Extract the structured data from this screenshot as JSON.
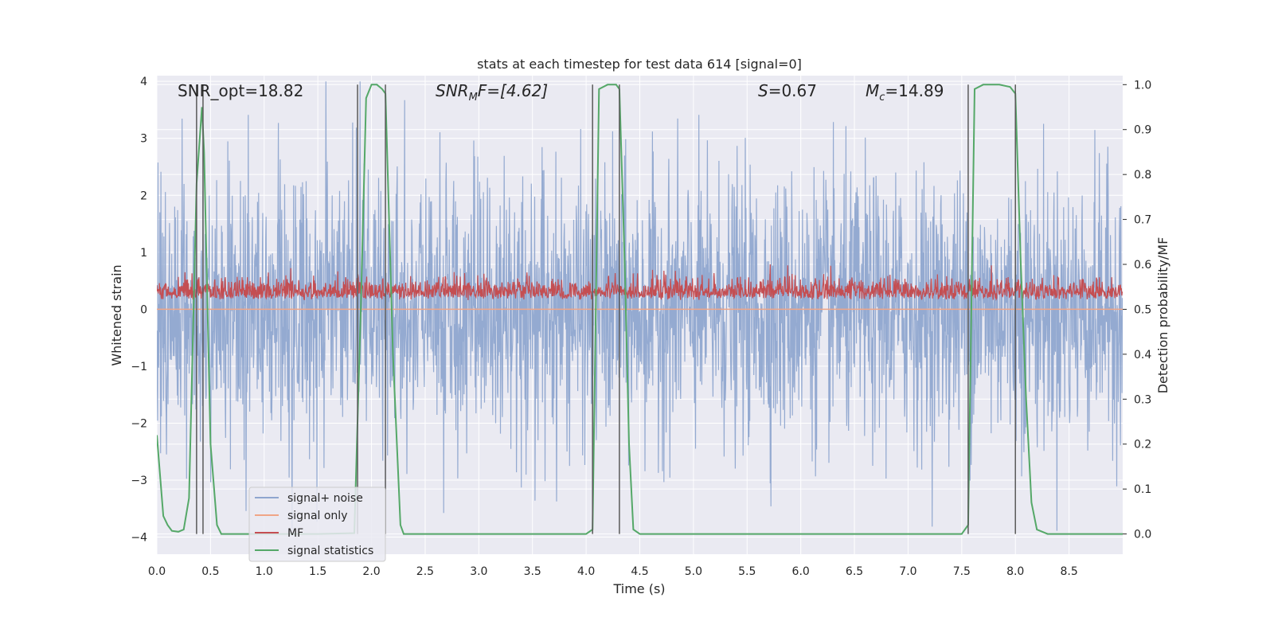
{
  "chart_data": {
    "type": "line",
    "title": "stats at each timestep for test data 614 [signal=0]",
    "xlabel": "Time (s)",
    "ylabel_left": "Whitened strain",
    "ylabel_right": "Detection probability/MF",
    "xlim": [
      0.0,
      9.0
    ],
    "ylim_left": [
      -4.3,
      4.1
    ],
    "ylim_right": [
      -0.045,
      1.02
    ],
    "xticks": [
      "0.0",
      "0.5",
      "1.0",
      "1.5",
      "2.0",
      "2.5",
      "3.0",
      "3.5",
      "4.0",
      "4.5",
      "5.0",
      "5.5",
      "6.0",
      "6.5",
      "7.0",
      "7.5",
      "8.0",
      "8.5"
    ],
    "yticks_left": [
      "4",
      "3",
      "2",
      "1",
      "0",
      "−1",
      "−2",
      "−3",
      "−4"
    ],
    "yticks_right": [
      "1.0",
      "0.9",
      "0.8",
      "0.7",
      "0.6",
      "0.5",
      "0.4",
      "0.3",
      "0.2",
      "0.1",
      "0.0"
    ],
    "grid": true,
    "legend_position": "lower-left",
    "annotations": [
      {
        "text": "SNR_opt=18.82"
      },
      {
        "text": "SNRₘF=[4.62]",
        "parts": [
          "SNR",
          "M",
          "F=[4.62]"
        ]
      },
      {
        "text": "S=0.67",
        "parts": [
          "S",
          "=0.67"
        ]
      },
      {
        "text": "Mc=14.89",
        "parts": [
          "M",
          "c",
          "=14.89"
        ]
      }
    ],
    "series": [
      {
        "name": "signal+ noise",
        "color": "#8fa6cf",
        "axis": "left",
        "kind": "noise",
        "range": [
          -4.0,
          4.0
        ]
      },
      {
        "name": "signal only",
        "color": "#f0a586",
        "axis": "left",
        "kind": "flat",
        "values": 0
      },
      {
        "name": "MF",
        "color": "#c44e52",
        "axis": "right",
        "kind": "noise",
        "range": [
          0.5,
          0.6
        ]
      },
      {
        "name": "signal statistics",
        "color": "#55a868",
        "axis": "right",
        "x": [
          0.0,
          0.06,
          0.1,
          0.14,
          0.2,
          0.25,
          0.3,
          0.37,
          0.42,
          0.44,
          0.5,
          0.56,
          0.6,
          1.0,
          1.5,
          1.84,
          1.9,
          1.95,
          2.0,
          2.05,
          2.1,
          2.13,
          2.2,
          2.27,
          2.3,
          2.4,
          3.0,
          3.5,
          4.0,
          4.06,
          4.12,
          4.2,
          4.28,
          4.31,
          4.36,
          4.4,
          4.44,
          4.5,
          5.0,
          5.5,
          6.0,
          6.5,
          7.0,
          7.5,
          7.56,
          7.62,
          7.7,
          7.85,
          7.95,
          8.0,
          8.05,
          8.1,
          8.15,
          8.2,
          8.3,
          8.5,
          8.7,
          9.0
        ],
        "y": [
          0.22,
          0.04,
          0.02,
          0.007,
          0.005,
          0.01,
          0.08,
          0.78,
          0.95,
          0.85,
          0.2,
          0.02,
          0.0,
          0.0,
          0.0,
          0.002,
          0.5,
          0.97,
          1.0,
          1.0,
          0.99,
          0.98,
          0.4,
          0.02,
          0.0,
          0.0,
          0.0,
          0.0,
          0.0,
          0.01,
          0.99,
          1.0,
          1.0,
          0.99,
          0.6,
          0.2,
          0.01,
          0.0,
          0.0,
          0.0,
          0.0,
          0.0,
          0.0,
          0.0,
          0.02,
          0.99,
          1.0,
          1.0,
          0.995,
          0.98,
          0.6,
          0.3,
          0.07,
          0.01,
          0.0,
          0.0,
          0.0,
          0.0
        ]
      },
      {
        "name": "markers",
        "color": "#5a5a5a",
        "axis": "right",
        "kind": "vlines",
        "x": [
          0.37,
          0.43,
          1.87,
          2.13,
          4.06,
          4.31,
          7.56,
          8.0
        ]
      }
    ]
  },
  "legend": {
    "items": [
      {
        "label": "signal+ noise",
        "color": "#8fa6cf"
      },
      {
        "label": "signal only",
        "color": "#f0a586"
      },
      {
        "label": "MF",
        "color": "#c44e52"
      },
      {
        "label": "signal statistics",
        "color": "#55a868"
      }
    ]
  },
  "colors": {
    "plot_background": "#eaeaf2",
    "grid": "#ffffff"
  }
}
